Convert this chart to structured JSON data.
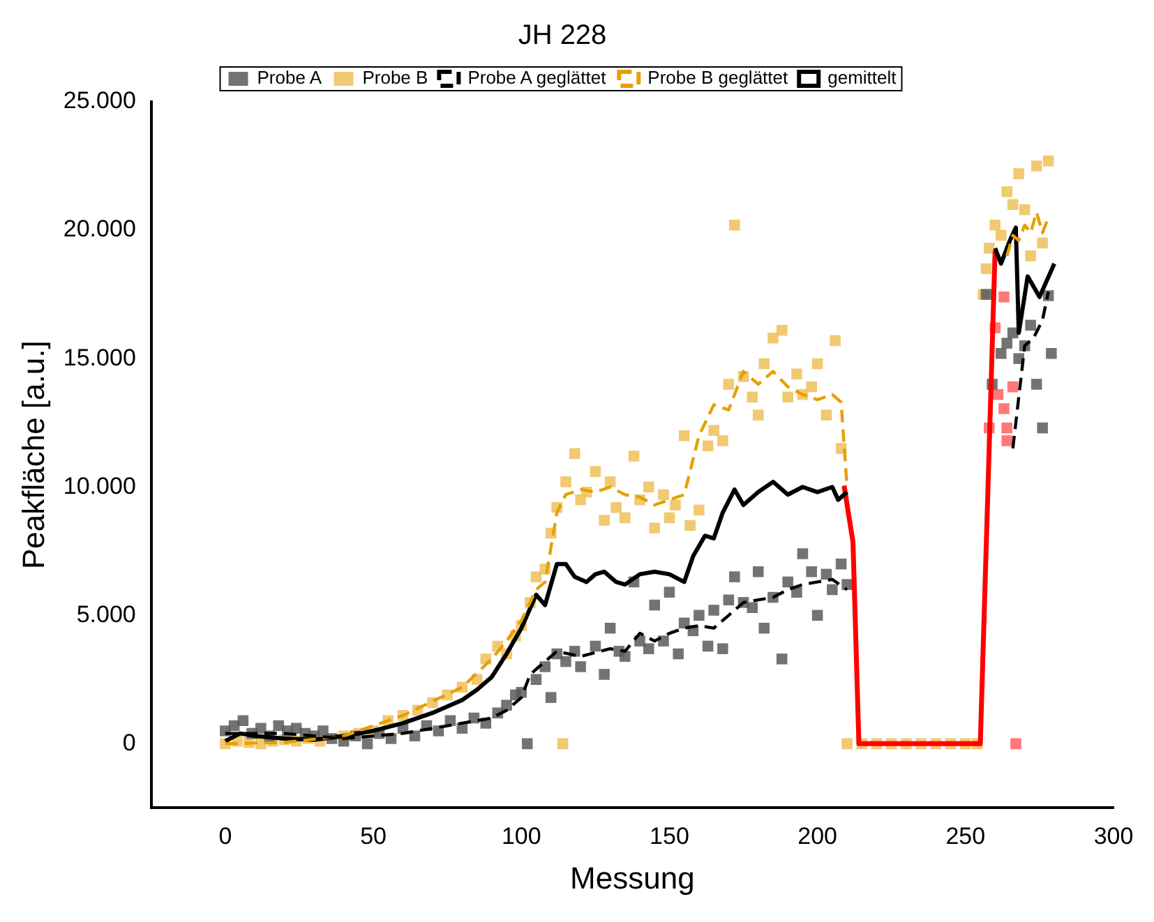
{
  "chart_data": {
    "type": "scatter",
    "title": "JH 228",
    "xlabel": "Messung",
    "ylabel": "Peakfläche [a.u.]",
    "xlim": [
      -25,
      300
    ],
    "xticks": [
      0,
      50,
      100,
      150,
      200,
      250,
      300
    ],
    "ylim": [
      -2500,
      25000
    ],
    "yticks": [
      {
        "value": 0,
        "label": "0"
      },
      {
        "value": 5000,
        "label": "5.000"
      },
      {
        "value": 10000,
        "label": "10.000"
      },
      {
        "value": 15000,
        "label": "15.000"
      },
      {
        "value": 20000,
        "label": "20.000"
      },
      {
        "value": 25000,
        "label": "25.000"
      }
    ],
    "grid": false,
    "legend": "top",
    "series": [
      {
        "name": "Probe A",
        "type": "scatter",
        "marker": "square",
        "color": "#5a5a5a",
        "x": [
          0,
          3,
          6,
          9,
          12,
          15,
          18,
          21,
          24,
          27,
          30,
          33,
          36,
          40,
          44,
          48,
          52,
          56,
          60,
          64,
          68,
          72,
          76,
          80,
          84,
          88,
          92,
          95,
          98,
          100,
          102,
          105,
          108,
          110,
          112,
          115,
          118,
          120,
          125,
          128,
          130,
          133,
          135,
          138,
          140,
          143,
          145,
          148,
          150,
          153,
          155,
          158,
          160,
          163,
          165,
          168,
          170,
          172,
          175,
          178,
          180,
          182,
          185,
          188,
          190,
          193,
          195,
          198,
          200,
          203,
          205,
          208,
          210,
          257,
          259,
          262,
          264,
          266,
          268,
          270,
          272,
          274,
          276,
          278,
          279
        ],
        "values": [
          500,
          700,
          900,
          400,
          600,
          300,
          700,
          500,
          600,
          400,
          300,
          500,
          200,
          100,
          300,
          0,
          400,
          200,
          600,
          300,
          700,
          500,
          900,
          600,
          1000,
          800,
          1200,
          1500,
          1900,
          2000,
          0,
          2500,
          3000,
          1800,
          3500,
          3200,
          3600,
          3000,
          3800,
          2700,
          4500,
          3600,
          3400,
          6300,
          4000,
          3700,
          5400,
          4000,
          5900,
          3500,
          4700,
          4400,
          5000,
          3800,
          5200,
          3700,
          5600,
          6500,
          5500,
          5300,
          6700,
          4500,
          5700,
          3300,
          6300,
          5900,
          7400,
          6700,
          5000,
          6600,
          6000,
          7000,
          6200,
          17500,
          14000,
          15200,
          15600,
          16000,
          15000,
          15500,
          16300,
          14000,
          12300,
          17450,
          15200
        ]
      },
      {
        "name": "Probe B",
        "type": "scatter",
        "marker": "square",
        "color": "#efbf58",
        "x": [
          0,
          4,
          8,
          12,
          16,
          20,
          24,
          28,
          32,
          36,
          40,
          45,
          50,
          55,
          60,
          65,
          70,
          75,
          80,
          85,
          88,
          92,
          95,
          98,
          100,
          103,
          105,
          108,
          110,
          112,
          114,
          115,
          118,
          120,
          122,
          125,
          128,
          130,
          132,
          135,
          138,
          140,
          143,
          145,
          148,
          150,
          152,
          155,
          157,
          160,
          163,
          165,
          168,
          170,
          172,
          175,
          178,
          180,
          182,
          185,
          188,
          190,
          193,
          195,
          198,
          200,
          203,
          206,
          208,
          210,
          215,
          220,
          225,
          230,
          235,
          240,
          245,
          250,
          254,
          256,
          257,
          258,
          260,
          262,
          264,
          266,
          268,
          270,
          272,
          274,
          276,
          278
        ],
        "values": [
          0,
          100,
          50,
          0,
          100,
          150,
          100,
          200,
          100,
          null,
          300,
          400,
          500,
          900,
          1100,
          1300,
          1600,
          1900,
          2200,
          2500,
          3300,
          3800,
          3500,
          4200,
          4600,
          5500,
          6500,
          6800,
          8200,
          9200,
          0,
          10200,
          11300,
          9500,
          9800,
          10600,
          8700,
          10200,
          9200,
          8800,
          11200,
          9500,
          10000,
          8400,
          9700,
          8800,
          9300,
          12000,
          8500,
          9100,
          11600,
          12200,
          11800,
          14000,
          20200,
          14300,
          13500,
          12800,
          14800,
          15800,
          16100,
          13500,
          14400,
          13600,
          13900,
          14800,
          12800,
          15700,
          11500,
          0,
          0,
          0,
          0,
          0,
          0,
          0,
          0,
          0,
          0,
          17500,
          18500,
          19300,
          20200,
          19800,
          21500,
          21000,
          22200,
          20800,
          19000,
          22500,
          19500,
          22700
        ]
      },
      {
        "name": "Probe A geglättet",
        "type": "line",
        "marker": "none",
        "line_style": "dashed",
        "color": "#000000",
        "x": [
          0,
          20,
          40,
          60,
          80,
          90,
          95,
          100,
          103,
          108,
          112,
          120,
          130,
          135,
          140,
          145,
          150,
          155,
          160,
          165,
          170,
          175,
          180,
          185,
          190,
          195,
          200,
          205,
          210,
          230,
          266,
          268,
          270,
          273,
          276,
          278
        ],
        "values": [
          400,
          400,
          200,
          400,
          800,
          1000,
          1300,
          1800,
          2700,
          3200,
          3600,
          3400,
          3700,
          3600,
          4300,
          4000,
          4300,
          4500,
          4600,
          4500,
          5000,
          5500,
          5600,
          5700,
          6000,
          6200,
          6300,
          6400,
          6000,
          null,
          11500,
          13500,
          15500,
          15800,
          16500,
          17600
        ]
      },
      {
        "name": "Probe B geglättet",
        "type": "line",
        "marker": "none",
        "line_style": "dashed",
        "color": "#e6a000",
        "x": [
          0,
          20,
          40,
          60,
          80,
          90,
          95,
          100,
          105,
          108,
          112,
          115,
          120,
          125,
          130,
          135,
          140,
          145,
          150,
          155,
          160,
          165,
          170,
          175,
          180,
          185,
          190,
          195,
          200,
          205,
          208,
          210,
          230,
          264,
          266,
          268,
          270,
          272,
          274,
          276,
          278
        ],
        "values": [
          0,
          50,
          300,
          1100,
          2200,
          3300,
          4000,
          4800,
          6000,
          6300,
          9000,
          9700,
          9900,
          9800,
          10000,
          9700,
          9600,
          9300,
          9500,
          9700,
          12000,
          13200,
          13000,
          14500,
          14000,
          14500,
          13900,
          13600,
          13400,
          13600,
          13300,
          10000,
          null,
          19000,
          19800,
          19600,
          20200,
          19900,
          20700,
          19900,
          20500
        ]
      },
      {
        "name": "gemittelt",
        "type": "line",
        "marker": "none",
        "line_style": "solid",
        "color": "#000000",
        "x": [
          0,
          5,
          10,
          20,
          30,
          40,
          50,
          60,
          70,
          80,
          85,
          90,
          95,
          100,
          105,
          108,
          112,
          115,
          118,
          122,
          125,
          128,
          132,
          135,
          140,
          145,
          150,
          155,
          158,
          162,
          165,
          168,
          172,
          175,
          180,
          185,
          190,
          195,
          200,
          205,
          207,
          210,
          230,
          260,
          262,
          265,
          267,
          268,
          271,
          275,
          280
        ],
        "values": [
          100,
          400,
          300,
          200,
          150,
          300,
          500,
          800,
          1200,
          1700,
          2100,
          2600,
          3500,
          4500,
          5800,
          5400,
          7000,
          7000,
          6500,
          6300,
          6600,
          6700,
          6300,
          6200,
          6600,
          6700,
          6600,
          6300,
          7300,
          8100,
          8000,
          9000,
          9900,
          9300,
          9800,
          10200,
          9700,
          10000,
          9800,
          10000,
          9500,
          9800,
          null,
          19300,
          18700,
          19600,
          20100,
          16000,
          18200,
          17400,
          18700
        ]
      },
      {
        "type": "line",
        "marker": "none",
        "line_style": "solid",
        "color": "#ff0000",
        "x": [
          209,
          212,
          214,
          255,
          260
        ],
        "values": [
          10050,
          7850,
          0,
          0,
          19200
        ]
      },
      {
        "type": "scatter",
        "marker": "square",
        "color": "#ff6060",
        "x": [
          263,
          260,
          261,
          266,
          263,
          258,
          264,
          264,
          267
        ],
        "values": [
          17400,
          16200,
          13600,
          13900,
          13050,
          12300,
          12300,
          11800,
          0
        ]
      }
    ]
  }
}
